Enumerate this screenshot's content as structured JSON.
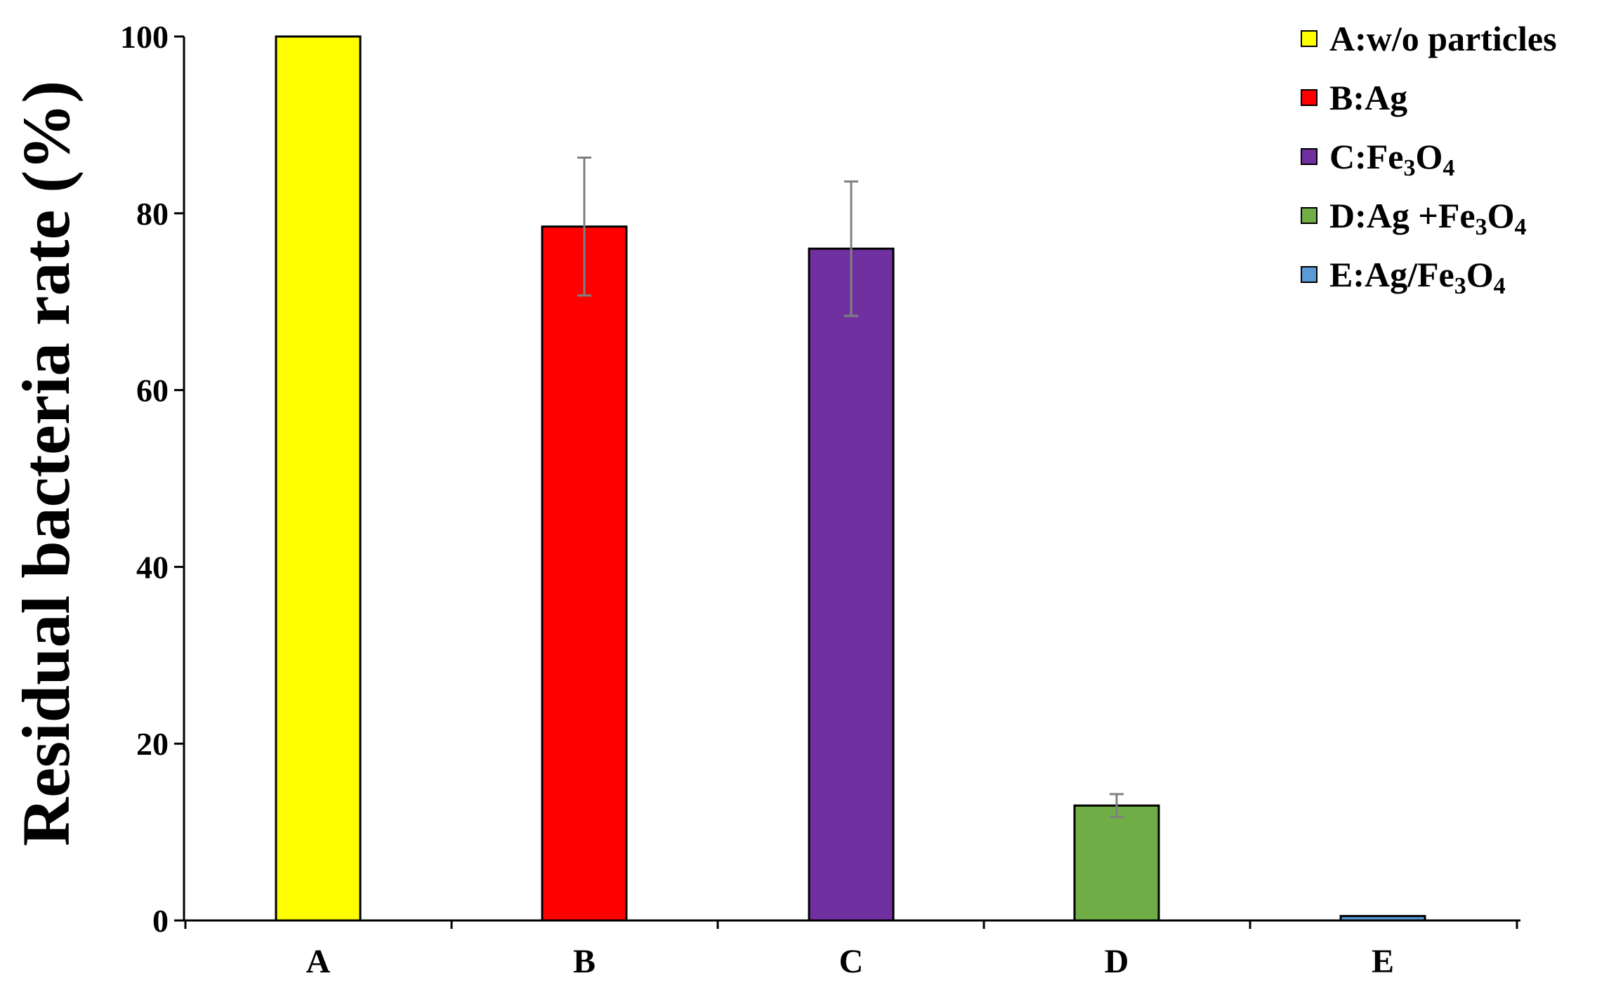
{
  "chart_data": {
    "type": "bar",
    "title": "",
    "xlabel": "",
    "ylabel": "Residual bacteria rate (%)",
    "ylim": [
      0,
      100
    ],
    "yticks": [
      0,
      20,
      40,
      60,
      80,
      100
    ],
    "grid": false,
    "legend_position": "top-right",
    "categories": [
      "A",
      "B",
      "C",
      "D",
      "E"
    ],
    "values": [
      100,
      78.5,
      76,
      13,
      0.5
    ],
    "errors": [
      0,
      7.8,
      7.6,
      1.3,
      0.2
    ],
    "colors": [
      "#ffff00",
      "#ff0000",
      "#7030a0",
      "#70ad47",
      "#5b9bd5"
    ],
    "legend": [
      {
        "label": "A:w/o particles",
        "color": "#ffff00"
      },
      {
        "label": "B:Ag",
        "color": "#ff0000"
      },
      {
        "label": "C:Fe3O4",
        "color": "#7030a0"
      },
      {
        "label": "D:Ag +Fe3O4",
        "color": "#70ad47"
      },
      {
        "label": "E:Ag/Fe3O4",
        "color": "#5b9bd5"
      }
    ]
  }
}
